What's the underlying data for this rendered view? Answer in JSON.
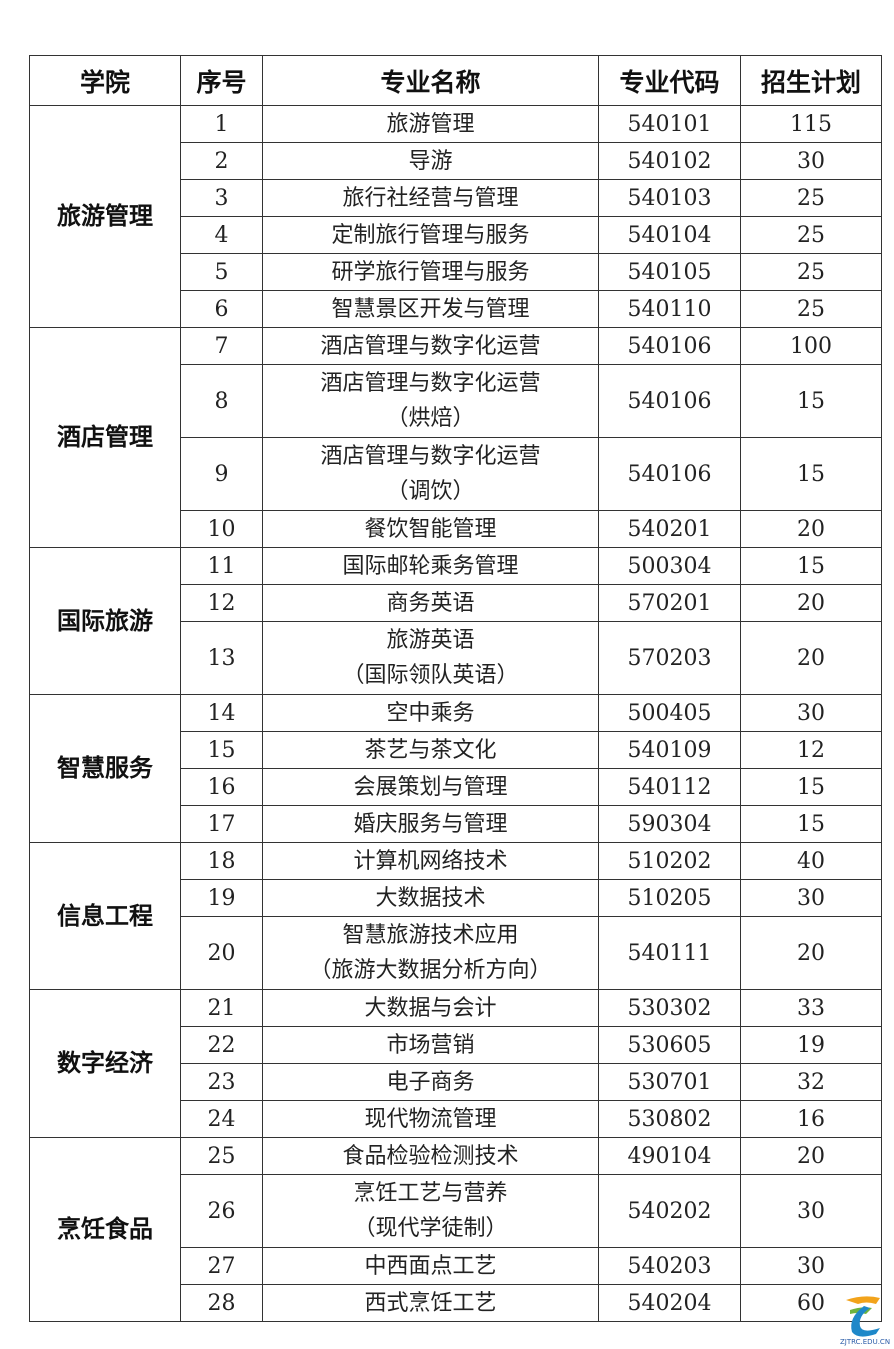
{
  "headers": [
    "学院",
    "序号",
    "专业名称",
    "专业代码",
    "招生计划"
  ],
  "groups": [
    {
      "college": "旅游管理",
      "rows": [
        {
          "no": "1",
          "name": [
            "旅游管理"
          ],
          "code": "540101",
          "plan": "115"
        },
        {
          "no": "2",
          "name": [
            "导游"
          ],
          "code": "540102",
          "plan": "30"
        },
        {
          "no": "3",
          "name": [
            "旅行社经营与管理"
          ],
          "code": "540103",
          "plan": "25"
        },
        {
          "no": "4",
          "name": [
            "定制旅行管理与服务"
          ],
          "code": "540104",
          "plan": "25"
        },
        {
          "no": "5",
          "name": [
            "研学旅行管理与服务"
          ],
          "code": "540105",
          "plan": "25"
        },
        {
          "no": "6",
          "name": [
            "智慧景区开发与管理"
          ],
          "code": "540110",
          "plan": "25"
        }
      ]
    },
    {
      "college": "酒店管理",
      "rows": [
        {
          "no": "7",
          "name": [
            "酒店管理与数字化运营"
          ],
          "code": "540106",
          "plan": "100"
        },
        {
          "no": "8",
          "name": [
            "酒店管理与数字化运营",
            "（烘焙）"
          ],
          "code": "540106",
          "plan": "15"
        },
        {
          "no": "9",
          "name": [
            "酒店管理与数字化运营",
            "（调饮）"
          ],
          "code": "540106",
          "plan": "15"
        },
        {
          "no": "10",
          "name": [
            "餐饮智能管理"
          ],
          "code": "540201",
          "plan": "20"
        }
      ]
    },
    {
      "college": "国际旅游",
      "rows": [
        {
          "no": "11",
          "name": [
            "国际邮轮乘务管理"
          ],
          "code": "500304",
          "plan": "15"
        },
        {
          "no": "12",
          "name": [
            "商务英语"
          ],
          "code": "570201",
          "plan": "20"
        },
        {
          "no": "13",
          "name": [
            "旅游英语",
            "（国际领队英语）"
          ],
          "code": "570203",
          "plan": "20"
        }
      ]
    },
    {
      "college": "智慧服务",
      "rows": [
        {
          "no": "14",
          "name": [
            "空中乘务"
          ],
          "code": "500405",
          "plan": "30"
        },
        {
          "no": "15",
          "name": [
            "茶艺与茶文化"
          ],
          "code": "540109",
          "plan": "12"
        },
        {
          "no": "16",
          "name": [
            "会展策划与管理"
          ],
          "code": "540112",
          "plan": "15"
        },
        {
          "no": "17",
          "name": [
            "婚庆服务与管理"
          ],
          "code": "590304",
          "plan": "15"
        }
      ]
    },
    {
      "college": "信息工程",
      "rows": [
        {
          "no": "18",
          "name": [
            "计算机网络技术"
          ],
          "code": "510202",
          "plan": "40"
        },
        {
          "no": "19",
          "name": [
            "大数据技术"
          ],
          "code": "510205",
          "plan": "30"
        },
        {
          "no": "20",
          "name": [
            "智慧旅游技术应用",
            "（旅游大数据分析方向）"
          ],
          "code": "540111",
          "plan": "20"
        }
      ]
    },
    {
      "college": "数字经济",
      "rows": [
        {
          "no": "21",
          "name": [
            "大数据与会计"
          ],
          "code": "530302",
          "plan": "33"
        },
        {
          "no": "22",
          "name": [
            "市场营销"
          ],
          "code": "530605",
          "plan": "19"
        },
        {
          "no": "23",
          "name": [
            "电子商务"
          ],
          "code": "530701",
          "plan": "32"
        },
        {
          "no": "24",
          "name": [
            "现代物流管理"
          ],
          "code": "530802",
          "plan": "16"
        }
      ]
    },
    {
      "college": "烹饪食品",
      "rows": [
        {
          "no": "25",
          "name": [
            "食品检验检测技术"
          ],
          "code": "490104",
          "plan": "20"
        },
        {
          "no": "26",
          "name": [
            "烹饪工艺与营养",
            "（现代学徒制）"
          ],
          "code": "540202",
          "plan": "30"
        },
        {
          "no": "27",
          "name": [
            "中西面点工艺"
          ],
          "code": "540203",
          "plan": "30"
        },
        {
          "no": "28",
          "name": [
            "西式烹饪工艺"
          ],
          "code": "540204",
          "plan": "60"
        }
      ]
    }
  ],
  "watermark": {
    "text": "ZJTRC.EDU.CN"
  }
}
